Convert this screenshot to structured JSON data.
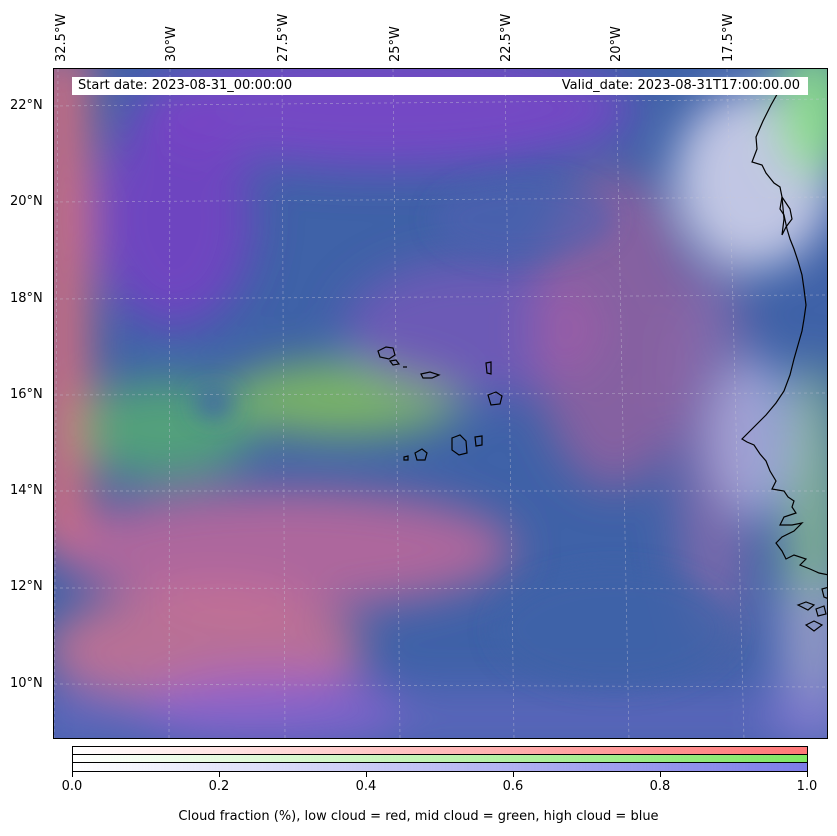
{
  "map": {
    "start_date": "Start date: 2023-08-31_00:00:00",
    "valid_date": "Valid_date: 2023-08-31T17:00:00.00",
    "longitude_labels": [
      "32.5°W",
      "30°W",
      "27.5°W",
      "25°W",
      "22.5°W",
      "20°W",
      "17.5°W"
    ],
    "latitude_labels": [
      "22°N",
      "20°N",
      "18°N",
      "16°N",
      "14°N",
      "12°N",
      "10°N"
    ],
    "region": "Cape Verde and West African coast",
    "layer_colors": {
      "low_cloud": "#ff5a5a",
      "mid_cloud": "#6ee65a",
      "high_cloud": "#5a5ae6",
      "background": "#3f62a8"
    }
  },
  "colorbar": {
    "ticks": [
      "0.0",
      "0.2",
      "0.4",
      "0.6",
      "0.8",
      "1.0"
    ],
    "label": "Cloud fraction (%), low cloud = red, mid cloud = green, high cloud = blue"
  }
}
